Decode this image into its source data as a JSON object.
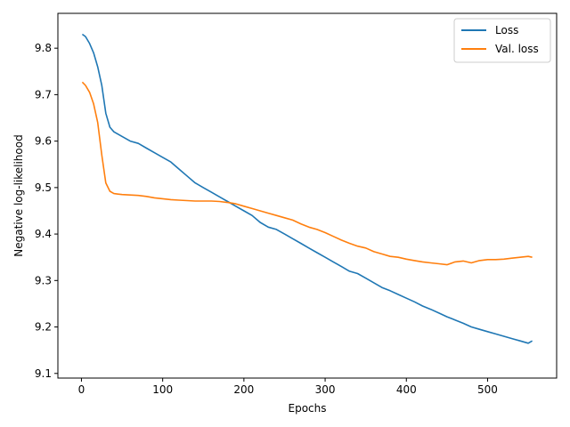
{
  "chart_data": {
    "type": "line",
    "xlabel": "Epochs",
    "ylabel": "Negative log-likelihood",
    "xlim": [
      -29,
      585
    ],
    "ylim": [
      9.09,
      9.875
    ],
    "xticks": [
      0,
      100,
      200,
      300,
      400,
      500
    ],
    "yticks": [
      9.1,
      9.2,
      9.3,
      9.4,
      9.5,
      9.6,
      9.7,
      9.8
    ],
    "xtick_labels": [
      "0",
      "100",
      "200",
      "300",
      "400",
      "500"
    ],
    "ytick_labels": [
      "9.1",
      "9.2",
      "9.3",
      "9.4",
      "9.5",
      "9.6",
      "9.7",
      "9.8"
    ],
    "grid": false,
    "legend_position": "top-right",
    "series": [
      {
        "name": "Loss",
        "color": "#1f77b4",
        "x": [
          1,
          5,
          10,
          15,
          20,
          25,
          30,
          35,
          40,
          45,
          50,
          60,
          70,
          80,
          90,
          100,
          110,
          120,
          130,
          140,
          150,
          160,
          170,
          180,
          190,
          200,
          210,
          220,
          230,
          240,
          250,
          260,
          270,
          280,
          290,
          300,
          310,
          320,
          330,
          340,
          350,
          360,
          370,
          380,
          390,
          400,
          410,
          420,
          430,
          440,
          450,
          460,
          470,
          480,
          490,
          500,
          510,
          520,
          530,
          540,
          550,
          555
        ],
        "y": [
          9.83,
          9.825,
          9.81,
          9.79,
          9.76,
          9.72,
          9.66,
          9.63,
          9.62,
          9.615,
          9.61,
          9.6,
          9.595,
          9.585,
          9.575,
          9.565,
          9.555,
          9.54,
          9.525,
          9.51,
          9.5,
          9.49,
          9.48,
          9.47,
          9.46,
          9.45,
          9.44,
          9.425,
          9.415,
          9.41,
          9.4,
          9.39,
          9.38,
          9.37,
          9.36,
          9.35,
          9.34,
          9.33,
          9.32,
          9.315,
          9.305,
          9.295,
          9.285,
          9.278,
          9.27,
          9.262,
          9.254,
          9.245,
          9.238,
          9.23,
          9.222,
          9.215,
          9.208,
          9.2,
          9.195,
          9.19,
          9.185,
          9.18,
          9.175,
          9.17,
          9.165,
          9.17
        ]
      },
      {
        "name": "Val. loss",
        "color": "#ff7f0e",
        "x": [
          1,
          5,
          10,
          15,
          20,
          25,
          30,
          35,
          40,
          45,
          50,
          60,
          70,
          80,
          90,
          100,
          110,
          120,
          130,
          140,
          150,
          160,
          170,
          180,
          190,
          200,
          210,
          220,
          230,
          240,
          250,
          260,
          270,
          280,
          290,
          300,
          310,
          320,
          330,
          340,
          350,
          360,
          370,
          380,
          390,
          400,
          410,
          420,
          430,
          440,
          450,
          460,
          470,
          480,
          490,
          500,
          510,
          520,
          530,
          540,
          550,
          555
        ],
        "y": [
          9.727,
          9.72,
          9.705,
          9.68,
          9.64,
          9.57,
          9.51,
          9.492,
          9.487,
          9.486,
          9.485,
          9.484,
          9.483,
          9.481,
          9.478,
          9.476,
          9.474,
          9.473,
          9.472,
          9.471,
          9.471,
          9.471,
          9.47,
          9.468,
          9.465,
          9.46,
          9.455,
          9.45,
          9.445,
          9.44,
          9.435,
          9.43,
          9.422,
          9.415,
          9.41,
          9.403,
          9.395,
          9.387,
          9.38,
          9.374,
          9.37,
          9.362,
          9.357,
          9.352,
          9.35,
          9.346,
          9.343,
          9.34,
          9.338,
          9.336,
          9.334,
          9.34,
          9.342,
          9.338,
          9.343,
          9.345,
          9.345,
          9.346,
          9.348,
          9.35,
          9.352,
          9.35
        ]
      }
    ]
  }
}
